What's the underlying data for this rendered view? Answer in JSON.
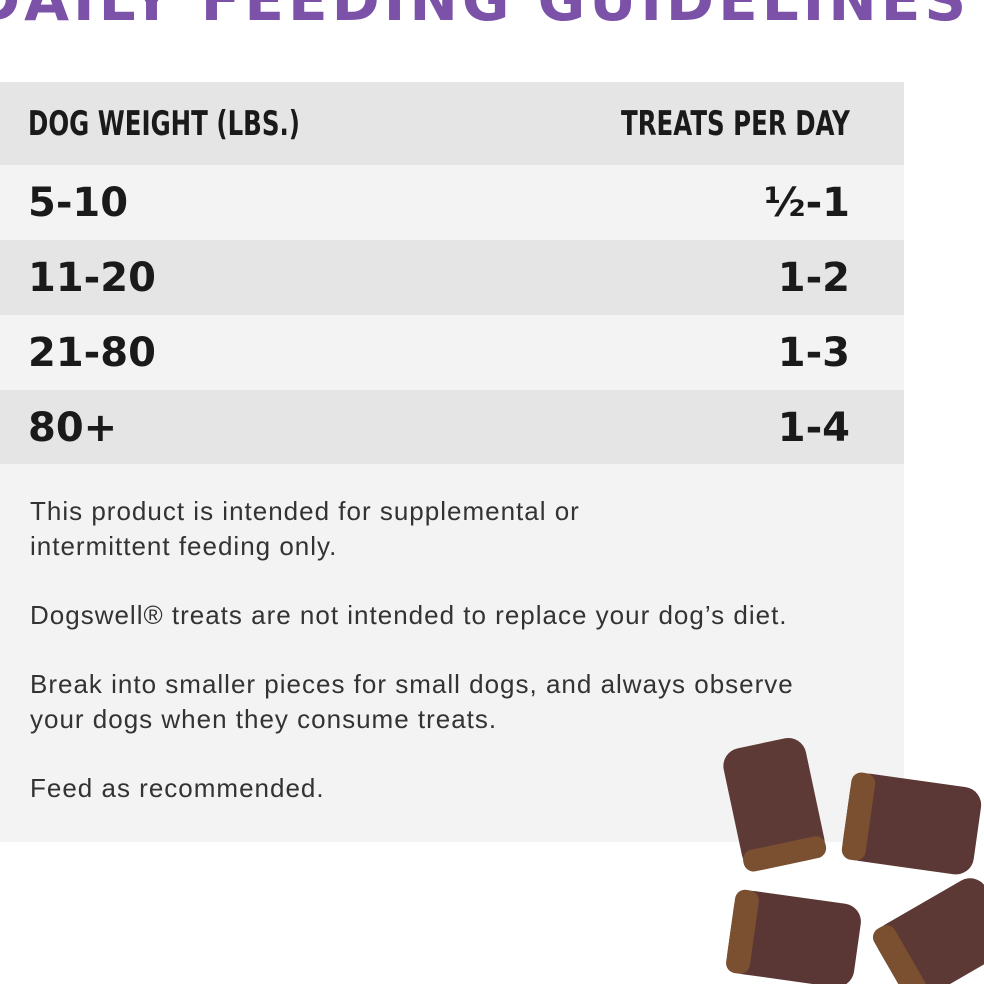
{
  "header": {
    "title": "DAILY FEEDING GUIDELINES"
  },
  "table": {
    "columns": [
      "DOG WEIGHT (LBS.)",
      "TREATS PER DAY"
    ],
    "rows": [
      [
        "5-10",
        "½-1"
      ],
      [
        "11-20",
        "1-2"
      ],
      [
        "21-80",
        "1-3"
      ],
      [
        "80+",
        "1-4"
      ]
    ]
  },
  "notes": [
    "This product is intended for supplemental or intermittent feeding only.",
    "Dogswell® treats are not intended to replace your dog’s diet.",
    "Break into smaller pieces for small dogs, and always observe your dogs when they consume treats.",
    "Feed as recommended."
  ]
}
